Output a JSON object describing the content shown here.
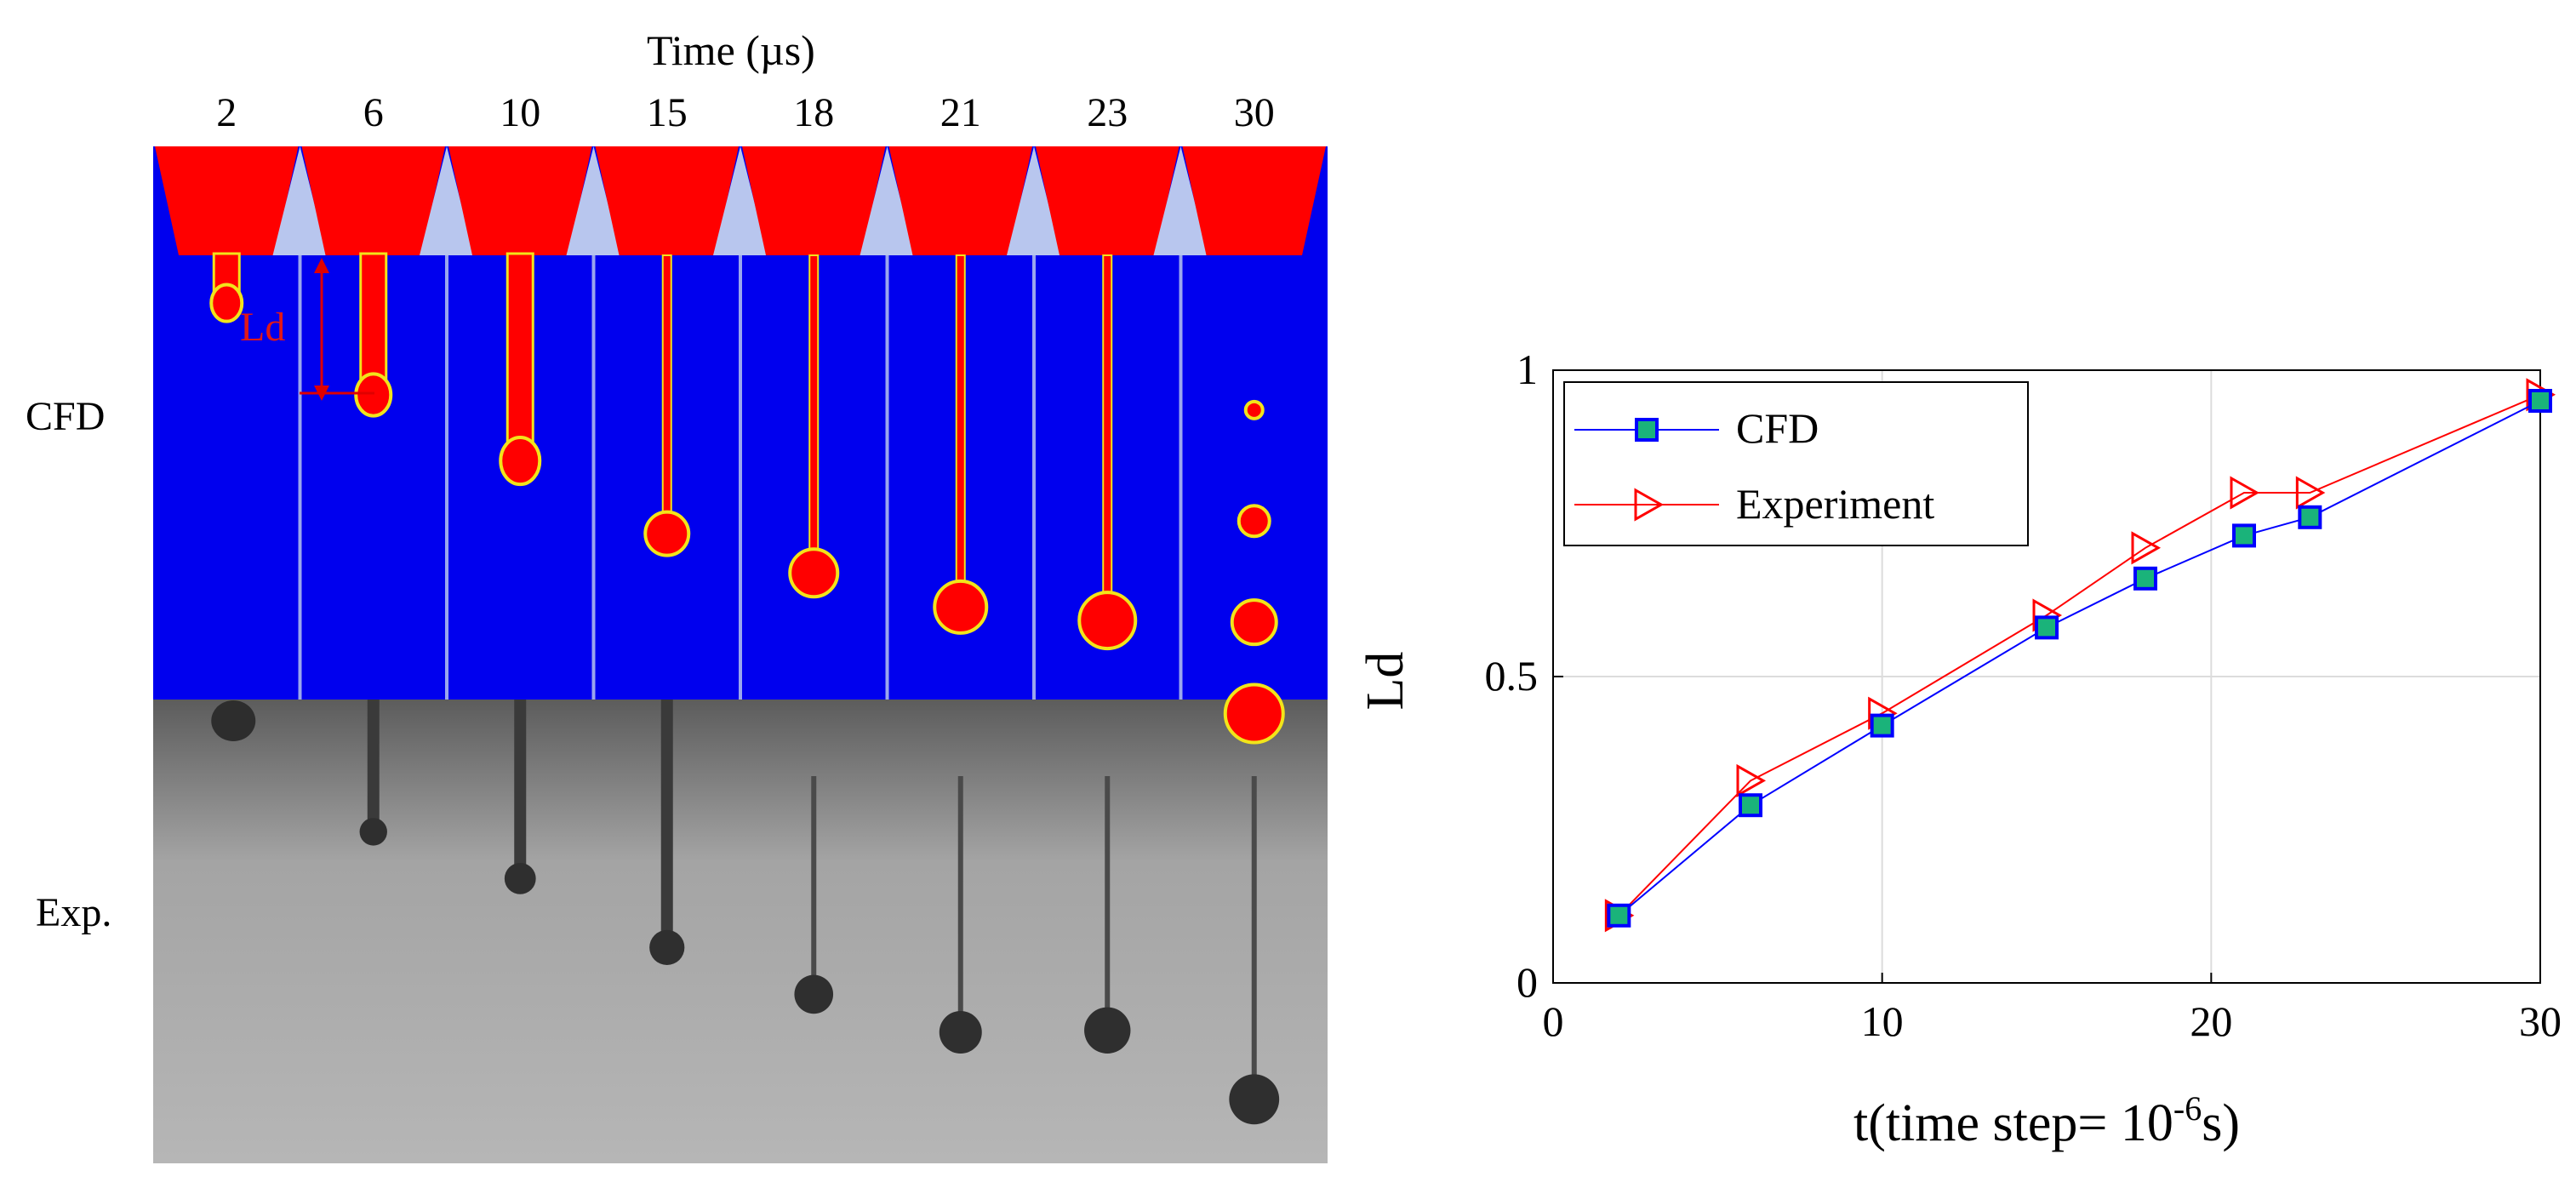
{
  "left_panel": {
    "time_header": "Time (µs)",
    "times": [
      "2",
      "6",
      "10",
      "15",
      "18",
      "21",
      "23",
      "30"
    ],
    "row_labels": {
      "cfd": "CFD",
      "exp": "Exp."
    },
    "ld_annotation": "Ld",
    "colors": {
      "liquid": "#ff0000",
      "background": "#0000ee",
      "nozzle": "#b8c6ee",
      "interface": "#f2e41a"
    },
    "cfd_lengths_rel": [
      0.11,
      0.29,
      0.42,
      0.58,
      0.66,
      0.73,
      0.76,
      0.95
    ],
    "exp_lengths_rel": [
      0.11,
      0.33,
      0.44,
      0.6,
      0.71,
      0.8,
      0.8,
      0.96
    ]
  },
  "chart_data": {
    "type": "line",
    "title": "",
    "xlabel": "t(time step= 10",
    "xlabel_sup": "-6",
    "xlabel_suffix": "s)",
    "ylabel": "Ld",
    "xlim": [
      0,
      30
    ],
    "ylim": [
      0,
      1
    ],
    "xticks": [
      0,
      10,
      20,
      30
    ],
    "yticks": [
      0,
      0.5,
      1
    ],
    "xtick_labels": [
      "0",
      "10",
      "20",
      "30"
    ],
    "ytick_labels": [
      "0",
      "0.5",
      "1"
    ],
    "grid": true,
    "legend_position": "top-left",
    "series": [
      {
        "name": "CFD",
        "color": "#0000ff",
        "marker": "square",
        "marker_fill": "#1ab37a",
        "x": [
          2,
          6,
          10,
          15,
          18,
          21,
          23,
          30
        ],
        "y": [
          0.11,
          0.29,
          0.42,
          0.58,
          0.66,
          0.73,
          0.76,
          0.95
        ]
      },
      {
        "name": "Experiment",
        "color": "#ff0000",
        "marker": "triangle-right",
        "marker_fill": "none",
        "x": [
          2,
          6,
          10,
          15,
          18,
          21,
          23,
          30
        ],
        "y": [
          0.11,
          0.33,
          0.44,
          0.6,
          0.71,
          0.8,
          0.8,
          0.96
        ]
      }
    ]
  }
}
